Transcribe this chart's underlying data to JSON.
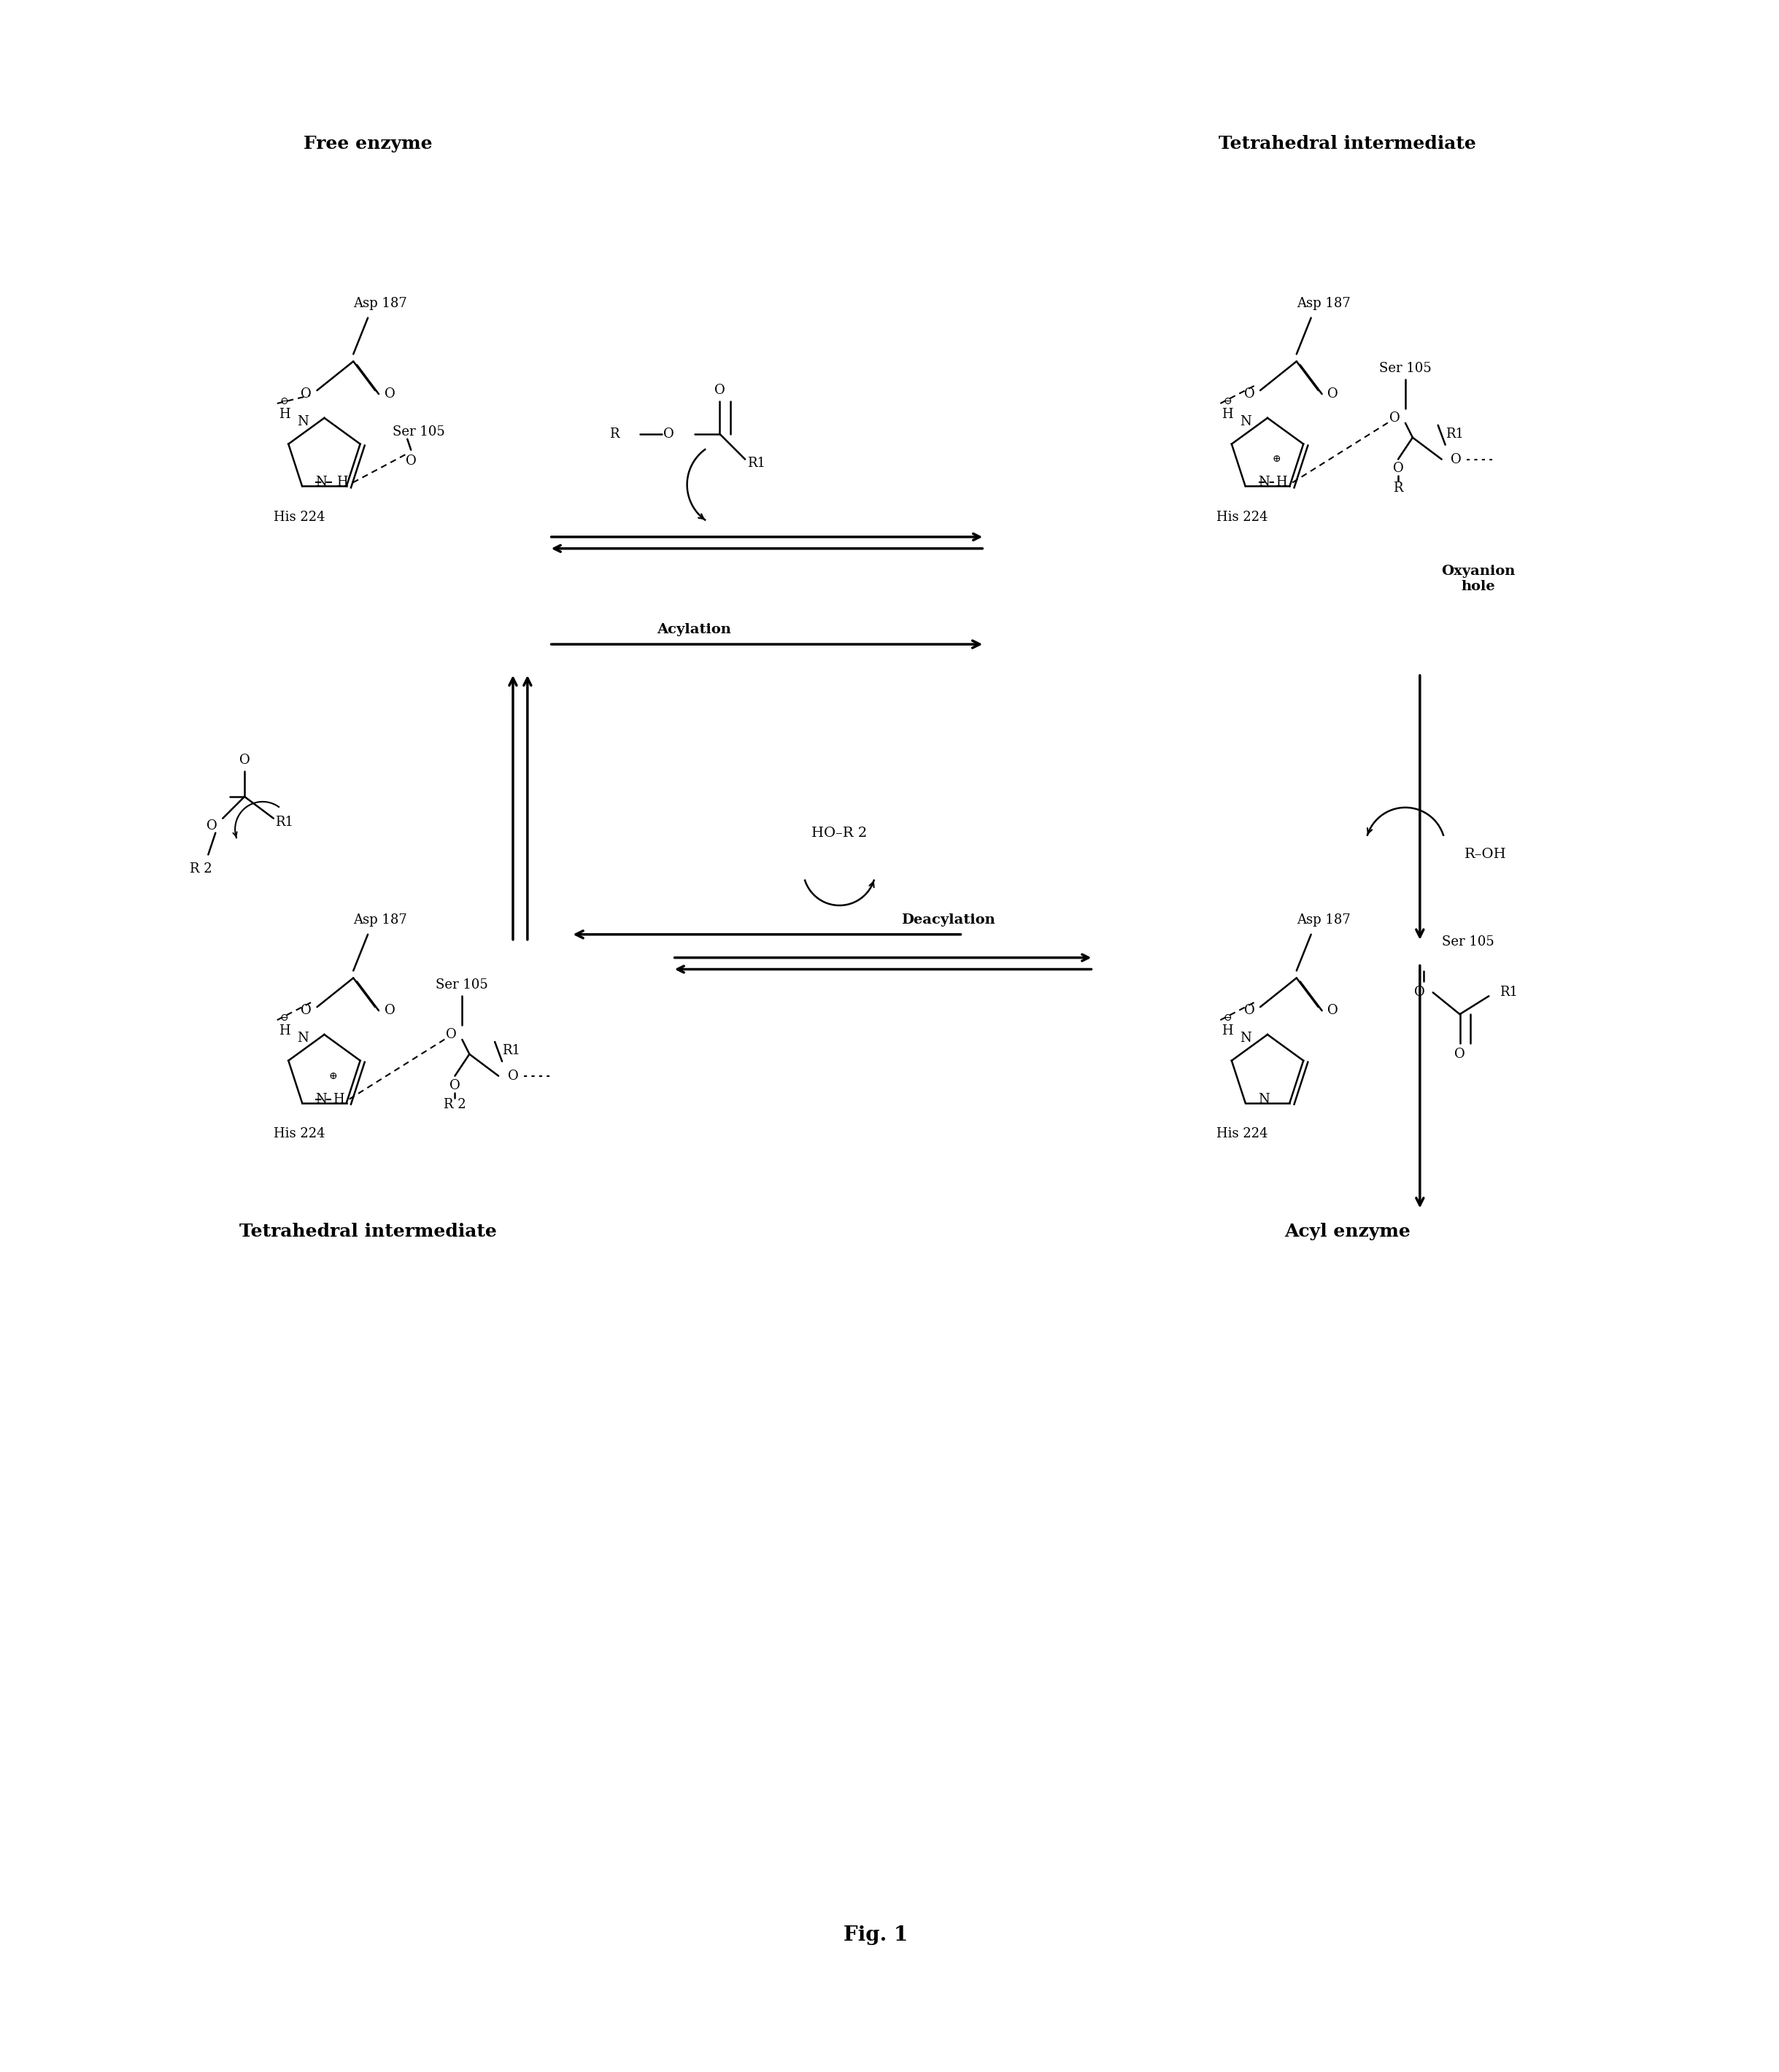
{
  "title": "Fig. 1",
  "background_color": "#ffffff",
  "text_color": "#000000",
  "labels": {
    "free_enzyme": "Free enzyme",
    "tetrahedral_intermediate_top": "Tetrahedral intermediate",
    "tetrahedral_intermediate_bottom": "Tetrahedral intermediate",
    "acyl_enzyme": "Acyl enzyme",
    "acylation": "Acylation",
    "deacylation": "Deacylation",
    "oxyanion_hole": "Oxyanion\nhole",
    "r_oh": "R–OH",
    "ho_r2": "HO–R 2",
    "fig_label": "Fig. 1"
  }
}
